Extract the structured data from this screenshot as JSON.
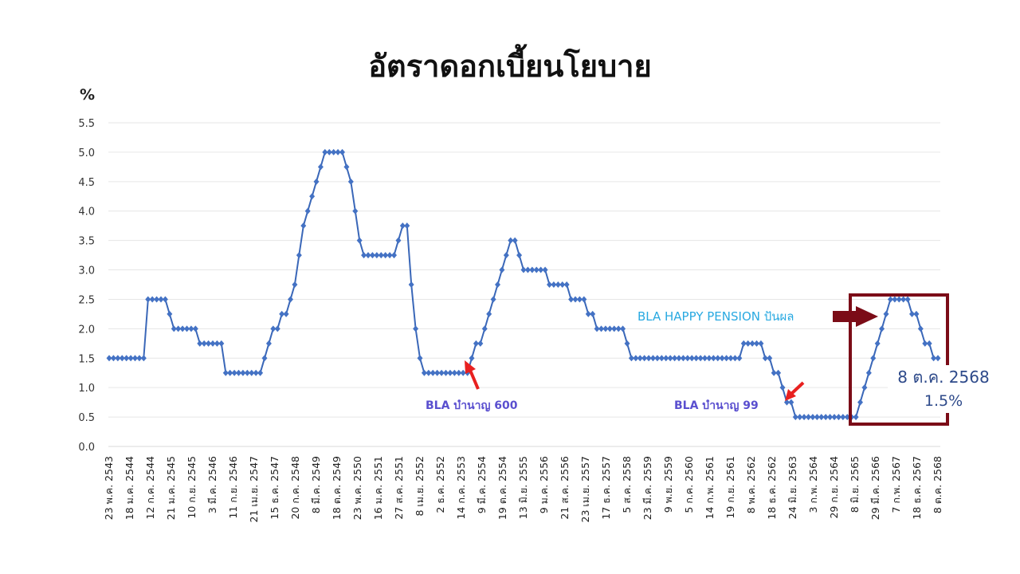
{
  "title": "อัตราดอกเบี้ยนโยบาย",
  "y_unit": "%",
  "colors": {
    "line": "#3a67b8",
    "marker": "#4472c4",
    "grid": "#e6e6e6",
    "arrow_red": "#e8201f",
    "box": "#7b0c17",
    "happy_text": "#29a9e1",
    "bla_text": "#5a4fcf",
    "callout_text": "#2e4a8a"
  },
  "annotations": {
    "bla600": "BLA บำนาญ 600",
    "bla99": "BLA บำนาญ 99",
    "happy": "BLA HAPPY PENSION ปันผล",
    "callout_date": "8 ต.ค. 2568",
    "callout_value": "1.5%"
  },
  "chart_data": {
    "type": "line",
    "title": "อัตราดอกเบี้ยนโยบาย",
    "xlabel": "",
    "ylabel": "%",
    "ylim": [
      0,
      5.5
    ],
    "yticks": [
      "0.0",
      "0.5",
      "1.0",
      "1.5",
      "2.0",
      "2.5",
      "3.0",
      "3.5",
      "4.0",
      "4.5",
      "5.0",
      "5.5"
    ],
    "grid": true,
    "legend": "none",
    "marker": "diamond",
    "x_tick_labels": [
      "23 พ.ค. 2543",
      "18 ม.ค. 2544",
      "12 ก.ค. 2544",
      "21 ม.ค. 2545",
      "10 ก.ย. 2545",
      "3 มี.ค. 2546",
      "11 ก.ย. 2546",
      "21 เม.ย. 2547",
      "15 ธ.ค. 2547",
      "20 ก.ค. 2548",
      "8 มี.ค. 2549",
      "18 ต.ค. 2549",
      "23 พ.ค. 2550",
      "16 ม.ค. 2551",
      "27 ส.ค. 2551",
      "8 เม.ย. 2552",
      "2 ธ.ค. 2552",
      "14 ก.ค. 2553",
      "9 มี.ค. 2554",
      "19 ต.ค. 2554",
      "13 มิ.ย. 2555",
      "9 ม.ค. 2556",
      "21 ส.ค. 2556",
      "23 เม.ย. 2557",
      "17 ธ.ค. 2557",
      "5 ส.ค. 2558",
      "23 มี.ค. 2559",
      "9 พ.ย. 2559",
      "5 ก.ค. 2560",
      "14 ก.พ. 2561",
      "19 ก.ย. 2561",
      "8 พ.ค. 2562",
      "18 ธ.ค. 2562",
      "24 มิ.ย. 2563",
      "3 ก.พ. 2564",
      "29 ก.ย. 2564",
      "8 มิ.ย. 2565",
      "29 มี.ค. 2566",
      "7 ก.พ. 2567",
      "18 ธ.ค. 2567",
      "8 ต.ค. 2568"
    ],
    "series": [
      {
        "name": "อัตราดอกเบี้ยนโยบาย",
        "runs": [
          [
            1.5,
            9
          ],
          [
            2.5,
            5
          ],
          [
            2.25,
            1
          ],
          [
            2.0,
            6
          ],
          [
            1.75,
            6
          ],
          [
            1.25,
            9
          ],
          [
            1.5,
            1
          ],
          [
            1.75,
            1
          ],
          [
            2.0,
            2
          ],
          [
            2.25,
            2
          ],
          [
            2.5,
            1
          ],
          [
            2.75,
            1
          ],
          [
            3.25,
            1
          ],
          [
            3.75,
            1
          ],
          [
            4.0,
            1
          ],
          [
            4.25,
            1
          ],
          [
            4.5,
            1
          ],
          [
            4.75,
            1
          ],
          [
            5.0,
            5
          ],
          [
            4.75,
            1
          ],
          [
            4.5,
            1
          ],
          [
            4.0,
            1
          ],
          [
            3.5,
            1
          ],
          [
            3.25,
            8
          ],
          [
            3.5,
            1
          ],
          [
            3.75,
            2
          ],
          [
            2.75,
            1
          ],
          [
            2.0,
            1
          ],
          [
            1.5,
            1
          ],
          [
            1.25,
            11
          ],
          [
            1.5,
            1
          ],
          [
            1.75,
            2
          ],
          [
            2.0,
            1
          ],
          [
            2.25,
            1
          ],
          [
            2.5,
            1
          ],
          [
            2.75,
            1
          ],
          [
            3.0,
            1
          ],
          [
            3.25,
            1
          ],
          [
            3.5,
            2
          ],
          [
            3.25,
            1
          ],
          [
            3.0,
            6
          ],
          [
            2.75,
            5
          ],
          [
            2.5,
            4
          ],
          [
            2.25,
            2
          ],
          [
            2.0,
            7
          ],
          [
            1.75,
            1
          ],
          [
            1.5,
            26
          ],
          [
            1.75,
            5
          ],
          [
            1.5,
            2
          ],
          [
            1.25,
            2
          ],
          [
            1.0,
            1
          ],
          [
            0.75,
            2
          ],
          [
            0.5,
            15
          ],
          [
            0.75,
            1
          ],
          [
            1.0,
            1
          ],
          [
            1.25,
            1
          ],
          [
            1.5,
            1
          ],
          [
            1.75,
            1
          ],
          [
            2.0,
            1
          ],
          [
            2.25,
            1
          ],
          [
            2.5,
            5
          ],
          [
            2.25,
            2
          ],
          [
            2.0,
            1
          ],
          [
            1.75,
            2
          ],
          [
            1.5,
            2
          ]
        ],
        "last_value": 1.5
      }
    ],
    "highlight_points": [
      {
        "label": "BLA บำนาญ 600",
        "x_label": "14 ก.ค. 2553",
        "value": 1.5
      },
      {
        "label": "BLA บำนาญ 99",
        "x_label": "24 มิ.ย. 2563",
        "value": 0.75
      },
      {
        "label": "BLA HAPPY PENSION ปันผล",
        "x_label": "8 มิ.ย. 2565 – 8 ต.ค. 2568",
        "value": 2.5
      },
      {
        "label": "8 ต.ค. 2568",
        "x_label": "8 ต.ค. 2568",
        "value": 1.5
      }
    ]
  }
}
